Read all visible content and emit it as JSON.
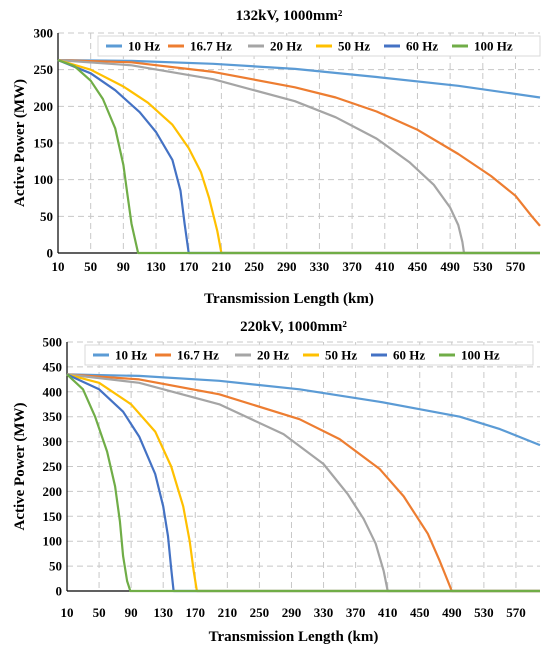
{
  "chart_data": [
    {
      "type": "line",
      "title": "132kV, 1000mm²",
      "xlabel": "Transmission Length (km)",
      "ylabel": "Active Power (MW)",
      "xlim": [
        10,
        600
      ],
      "ylim": [
        0,
        300
      ],
      "xticks": [
        10,
        50,
        90,
        130,
        170,
        210,
        250,
        290,
        330,
        370,
        410,
        450,
        490,
        530,
        570
      ],
      "yticks": [
        0,
        50,
        100,
        150,
        200,
        250,
        300
      ],
      "grid": true,
      "legend_position": "top",
      "series": [
        {
          "name": "10 Hz",
          "color": "#5b9bd5",
          "x": [
            10,
            100,
            200,
            300,
            400,
            500,
            600
          ],
          "y": [
            263,
            262,
            258,
            251,
            240,
            228,
            212
          ]
        },
        {
          "name": "16.7 Hz",
          "color": "#ed7d31",
          "x": [
            10,
            100,
            200,
            300,
            350,
            400,
            450,
            500,
            540,
            570,
            590,
            600
          ],
          "y": [
            263,
            260,
            247,
            226,
            212,
            193,
            168,
            135,
            105,
            78,
            50,
            37
          ]
        },
        {
          "name": "20 Hz",
          "color": "#a5a5a5",
          "x": [
            10,
            100,
            200,
            300,
            350,
            400,
            440,
            470,
            490,
            500,
            505,
            507,
            600
          ],
          "y": [
            263,
            256,
            237,
            207,
            185,
            156,
            124,
            93,
            62,
            38,
            15,
            0,
            0
          ]
        },
        {
          "name": "50 Hz",
          "color": "#ffc000",
          "x": [
            10,
            50,
            90,
            120,
            150,
            170,
            185,
            195,
            205,
            210,
            600
          ],
          "y": [
            263,
            250,
            227,
            205,
            175,
            143,
            110,
            75,
            30,
            0,
            0
          ]
        },
        {
          "name": "60 Hz",
          "color": "#4472c4",
          "x": [
            10,
            50,
            80,
            110,
            130,
            150,
            160,
            165,
            170,
            600
          ],
          "y": [
            263,
            245,
            222,
            192,
            165,
            127,
            85,
            40,
            0,
            0
          ]
        },
        {
          "name": "100 Hz",
          "color": "#70ad47",
          "x": [
            10,
            30,
            50,
            65,
            80,
            90,
            95,
            100,
            108,
            600
          ],
          "y": [
            263,
            255,
            235,
            210,
            170,
            120,
            80,
            40,
            0,
            0
          ]
        }
      ]
    },
    {
      "type": "line",
      "title": "220kV, 1000mm²",
      "xlabel": "Transmission Length (km)",
      "ylabel": "Active Power (MW)",
      "xlim": [
        10,
        600
      ],
      "ylim": [
        0,
        500
      ],
      "xticks": [
        10,
        50,
        90,
        130,
        170,
        210,
        250,
        290,
        330,
        370,
        410,
        450,
        490,
        530,
        570
      ],
      "yticks": [
        0,
        50,
        100,
        150,
        200,
        250,
        300,
        350,
        400,
        450,
        500
      ],
      "grid": true,
      "legend_position": "top",
      "series": [
        {
          "name": "10 Hz",
          "color": "#5b9bd5",
          "x": [
            10,
            100,
            200,
            300,
            400,
            500,
            550,
            600
          ],
          "y": [
            435,
            432,
            422,
            405,
            380,
            350,
            325,
            293
          ]
        },
        {
          "name": "16.7 Hz",
          "color": "#ed7d31",
          "x": [
            10,
            100,
            200,
            300,
            350,
            400,
            430,
            460,
            475,
            485,
            490,
            600
          ],
          "y": [
            435,
            425,
            395,
            345,
            305,
            245,
            190,
            115,
            60,
            20,
            0,
            0
          ]
        },
        {
          "name": "20 Hz",
          "color": "#a5a5a5",
          "x": [
            10,
            100,
            200,
            280,
            330,
            360,
            380,
            395,
            405,
            410,
            600
          ],
          "y": [
            435,
            418,
            375,
            315,
            255,
            195,
            145,
            95,
            40,
            0,
            0
          ]
        },
        {
          "name": "50 Hz",
          "color": "#ffc000",
          "x": [
            10,
            50,
            90,
            120,
            140,
            155,
            163,
            168,
            172,
            600
          ],
          "y": [
            435,
            418,
            375,
            320,
            250,
            170,
            100,
            40,
            0,
            0
          ]
        },
        {
          "name": "60 Hz",
          "color": "#4472c4",
          "x": [
            10,
            50,
            80,
            100,
            120,
            130,
            136,
            140,
            143,
            600
          ],
          "y": [
            435,
            405,
            360,
            310,
            235,
            170,
            110,
            45,
            0,
            0
          ]
        },
        {
          "name": "100 Hz",
          "color": "#70ad47",
          "x": [
            10,
            30,
            45,
            60,
            70,
            76,
            80,
            85,
            89,
            600
          ],
          "y": [
            435,
            405,
            350,
            280,
            210,
            140,
            70,
            20,
            0,
            0
          ]
        }
      ]
    }
  ]
}
